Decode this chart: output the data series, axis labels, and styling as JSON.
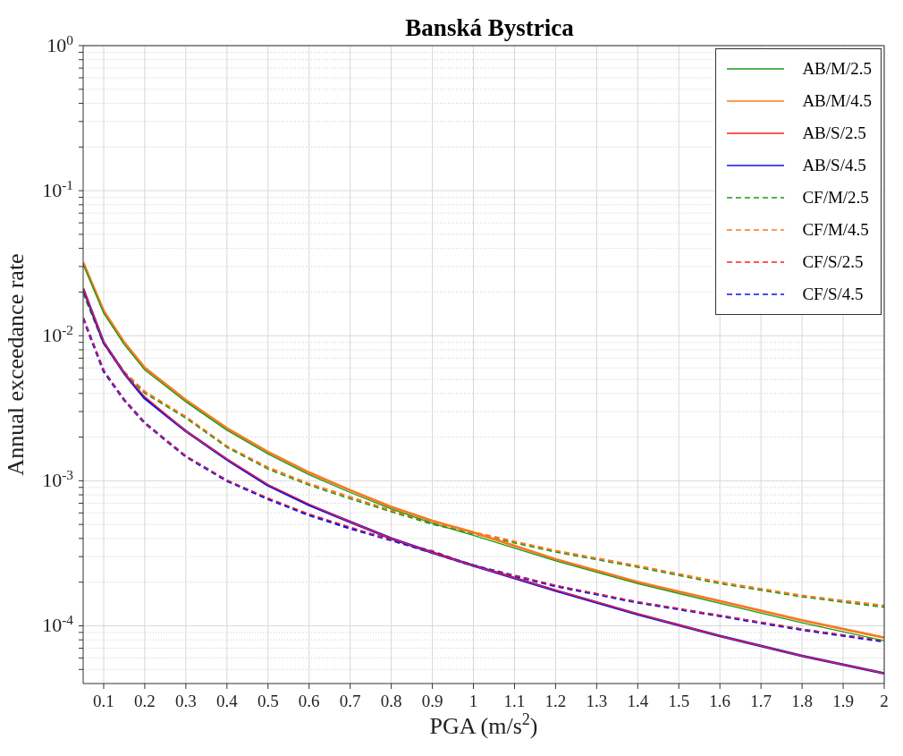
{
  "chart_data": {
    "type": "line",
    "title": "Banská Bystrica",
    "xlabel": "PGA (m/s$^{2}$)",
    "ylabel": "Annual exceedance rate",
    "log": "y",
    "grid": true,
    "legend": "top right",
    "marker": "none",
    "xlim": [
      0.05,
      2
    ],
    "xticks": [
      0.1,
      0.2,
      0.3,
      0.4,
      0.5,
      0.6,
      0.7,
      0.8,
      0.9,
      1,
      1.1,
      1.2,
      1.3,
      1.4,
      1.5,
      1.6,
      1.7,
      1.8,
      1.9,
      2
    ],
    "ylim": [
      4e-05,
      1
    ],
    "yticks": [
      {
        "value": 5e-05,
        "label": null
      },
      {
        "value": 6e-05,
        "label": null
      },
      {
        "value": 7e-05,
        "label": null
      },
      {
        "value": 8e-05,
        "label": null
      },
      {
        "value": 9e-05,
        "label": null
      },
      {
        "value": 0.0001,
        "label": "10$^{-4}$"
      },
      {
        "value": 0.0002,
        "label": null
      },
      {
        "value": 0.0003,
        "label": null
      },
      {
        "value": 0.0004,
        "label": null
      },
      {
        "value": 0.0005,
        "label": null
      },
      {
        "value": 0.0006,
        "label": null
      },
      {
        "value": 0.0007,
        "label": null
      },
      {
        "value": 0.0008,
        "label": null
      },
      {
        "value": 0.0009,
        "label": null
      },
      {
        "value": 0.001,
        "label": "10$^{-3}$"
      },
      {
        "value": 0.002,
        "label": null
      },
      {
        "value": 0.003,
        "label": null
      },
      {
        "value": 0.004,
        "label": null
      },
      {
        "value": 0.005,
        "label": null
      },
      {
        "value": 0.006,
        "label": null
      },
      {
        "value": 0.007,
        "label": null
      },
      {
        "value": 0.008,
        "label": null
      },
      {
        "value": 0.009,
        "label": null
      },
      {
        "value": 0.01,
        "label": "10$^{-2}$"
      },
      {
        "value": 0.02,
        "label": null
      },
      {
        "value": 0.03,
        "label": null
      },
      {
        "value": 0.04,
        "label": null
      },
      {
        "value": 0.05,
        "label": null
      },
      {
        "value": 0.06,
        "label": null
      },
      {
        "value": 0.07,
        "label": null
      },
      {
        "value": 0.08,
        "label": null
      },
      {
        "value": 0.09,
        "label": null
      },
      {
        "value": 0.1,
        "label": "10$^{-1}$"
      },
      {
        "value": 0.2,
        "label": null
      },
      {
        "value": 0.3,
        "label": null
      },
      {
        "value": 0.4,
        "label": null
      },
      {
        "value": 0.5,
        "label": null
      },
      {
        "value": 0.6,
        "label": null
      },
      {
        "value": 0.7,
        "label": null
      },
      {
        "value": 0.8,
        "label": null
      },
      {
        "value": 0.9,
        "label": null
      },
      {
        "value": 1,
        "label": "10$^{0}$"
      }
    ],
    "x": [
      0.05,
      0.1,
      0.15,
      0.2,
      0.3,
      0.4,
      0.5,
      0.6,
      0.7,
      0.8,
      0.9,
      1,
      1.2,
      1.4,
      1.6,
      1.8,
      2
    ],
    "series": [
      {
        "name": "AB/M/2.5",
        "color": "#1a9a1a",
        "line_style": "solid",
        "values": [
          0.031,
          0.0143,
          0.0087,
          0.0058,
          0.0035,
          0.00223,
          0.00153,
          0.0011,
          0.00083,
          0.00064,
          0.00051,
          0.00042,
          0.00028,
          0.000195,
          0.000143,
          0.000105,
          7.9e-05
        ]
      },
      {
        "name": "AB/M/4.5",
        "color": "#f7791f",
        "line_style": "solid",
        "values": [
          0.032,
          0.0148,
          0.009,
          0.006,
          0.0036,
          0.0023,
          0.00158,
          0.00114,
          0.00086,
          0.00066,
          0.00053,
          0.00044,
          0.000288,
          0.0002,
          0.000148,
          0.000109,
          8.3e-05
        ]
      },
      {
        "name": "AB/S/2.5",
        "color": "#ff2020",
        "line_style": "solid",
        "values": [
          0.0213,
          0.0091,
          0.0055,
          0.0038,
          0.0022,
          0.00141,
          0.00094,
          0.00069,
          0.00052,
          0.0004,
          0.00032,
          0.00026,
          0.000176,
          0.000121,
          8.5e-05,
          6.2e-05,
          4.7e-05
        ]
      },
      {
        "name": "AB/S/4.5",
        "color": "#1010ee",
        "line_style": "solid",
        "values": [
          0.0211,
          0.009,
          0.0055,
          0.0037,
          0.0022,
          0.0014,
          0.00093,
          0.00068,
          0.00052,
          0.0004,
          0.00032,
          0.00026,
          0.000175,
          0.00012,
          8.5e-05,
          6.2e-05,
          4.7e-05
        ]
      },
      {
        "name": "CF/M/2.5",
        "color": "#1a9a1a",
        "line_style": "dashed",
        "values": [
          0.0195,
          0.0088,
          0.0055,
          0.004,
          0.0027,
          0.0017,
          0.0012,
          0.00093,
          0.00075,
          0.00061,
          0.0005,
          0.00043,
          0.000322,
          0.000253,
          0.000195,
          0.000158,
          0.000134
        ]
      },
      {
        "name": "CF/M/4.5",
        "color": "#f7791f",
        "line_style": "dashed",
        "values": [
          0.0199,
          0.0089,
          0.0056,
          0.0041,
          0.00275,
          0.00172,
          0.00123,
          0.00095,
          0.00077,
          0.00062,
          0.00051,
          0.00044,
          0.000328,
          0.000258,
          0.000199,
          0.000161,
          0.000137
        ]
      },
      {
        "name": "CF/S/2.5",
        "color": "#ff2020",
        "line_style": "dashed",
        "values": [
          0.0133,
          0.0058,
          0.0036,
          0.0025,
          0.00148,
          0.00101,
          0.00076,
          0.00059,
          0.00048,
          0.00039,
          0.00033,
          0.00026,
          0.00019,
          0.000146,
          0.000118,
          9.5e-05,
          7.9e-05
        ]
      },
      {
        "name": "CF/S/4.5",
        "color": "#1010ee",
        "line_style": "dashed",
        "values": [
          0.0132,
          0.0057,
          0.0036,
          0.0025,
          0.00147,
          0.001,
          0.00075,
          0.00058,
          0.00047,
          0.00039,
          0.00032,
          0.00026,
          0.000188,
          0.000145,
          0.000117,
          9.4e-05,
          7.8e-05
        ]
      }
    ]
  }
}
